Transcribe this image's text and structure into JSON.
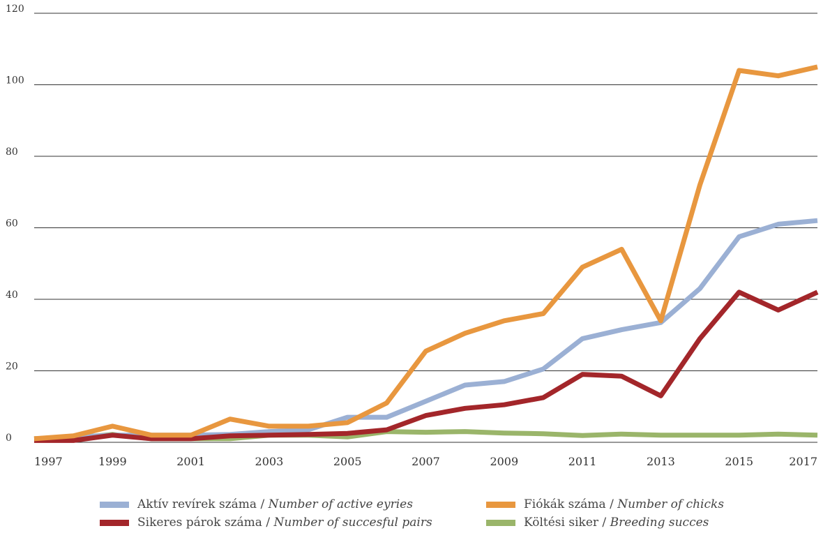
{
  "chart_data": {
    "type": "line",
    "x": [
      1997,
      1998,
      1999,
      2000,
      2001,
      2002,
      2003,
      2004,
      2005,
      2006,
      2007,
      2008,
      2009,
      2010,
      2011,
      2012,
      2013,
      2014,
      2015,
      2016,
      2017
    ],
    "x_tick_labels": [
      "1997",
      "1999",
      "2001",
      "2003",
      "2005",
      "2007",
      "2009",
      "2011",
      "2013",
      "2015",
      "2017"
    ],
    "y_tick_labels": [
      "0",
      "20",
      "40",
      "60",
      "80",
      "100",
      "120"
    ],
    "ylim": [
      0,
      120
    ],
    "grid": true,
    "legend_placement": "bottom",
    "series": [
      {
        "name": "Aktív revírek száma",
        "name_en": "Number of active eyries",
        "sep": " / ",
        "color": "#9bb0d4",
        "values": [
          1,
          1.5,
          2,
          2,
          2,
          2.2,
          3,
          3.5,
          7,
          7,
          11.5,
          16,
          17,
          20.5,
          29,
          31.5,
          33.5,
          43,
          57.5,
          61,
          62
        ]
      },
      {
        "name": "Fiókák száma",
        "name_en": "Number of chicks",
        "sep": " / ",
        "color": "#e8973f",
        "values": [
          1,
          1.8,
          4.5,
          2,
          2,
          6.5,
          4.5,
          4.5,
          5.5,
          11,
          25.5,
          30.5,
          34,
          36,
          49,
          54,
          34,
          72,
          104,
          102.5,
          105
        ]
      },
      {
        "name": "Sikeres párok száma",
        "name_en": "Number of succesful pairs",
        "sep": " / ",
        "color": "#a3262a",
        "values": [
          0.5,
          0.5,
          2,
          1,
          1,
          1.8,
          2,
          2.2,
          2.5,
          3.5,
          7.5,
          9.5,
          10.5,
          12.5,
          19,
          18.5,
          13,
          29,
          42,
          37,
          42
        ]
      },
      {
        "name": "Költési siker",
        "name_en": "Breeding succes",
        "sep": " / ",
        "color": "#9ab56a",
        "values": [
          1,
          1.2,
          2.2,
          1,
          1,
          1,
          2,
          2,
          1.5,
          3,
          2.8,
          3,
          2.6,
          2.4,
          1.9,
          2.3,
          2,
          2,
          2,
          2.3,
          2
        ]
      }
    ]
  }
}
